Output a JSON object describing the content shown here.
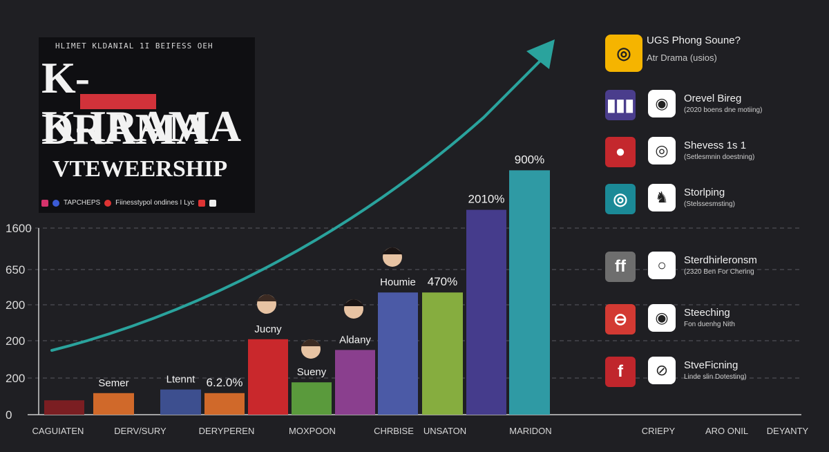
{
  "title_panel": {
    "top_line": "HLIMET KLDANIAL 1I BEIFESS OEH",
    "line1": "K-DRAMA",
    "line2": "K-IRAMA",
    "line3": "VTEWEERSHIP",
    "footer_a": "TAPCHEPS",
    "footer_b": "Fiinesstypol ondines I Lyc"
  },
  "platform_header": {
    "name": "UGS Phong Soune?",
    "sub": "Atr Drama (usios)"
  },
  "platforms": [
    {
      "name": "Orevel Bireg",
      "sub": "(2020 boens dne motiing)",
      "icon": "bars-icon",
      "icon_glyph": "▮▮▮",
      "color": "#4a3d8c",
      "icon2": "target-icon",
      "icon2_glyph": "◉"
    },
    {
      "name": "Shevess 1s 1",
      "sub": "(Setlesmnin doestning)",
      "icon": "chat-bubble-icon",
      "icon_glyph": "●",
      "color": "#c4282d",
      "icon2": "spiral-icon",
      "icon2_glyph": "◎"
    },
    {
      "name": "Storlping",
      "sub": "(Stelssesmsting)",
      "icon": "play-circle-icon",
      "icon_glyph": "◎",
      "color": "#1b8a97",
      "icon2": "elephant-icon",
      "icon2_glyph": "♞"
    },
    {
      "name": "Sterdhirleronsm",
      "sub": "(2320 Ben For Chering",
      "icon": "ff-logo-icon",
      "icon_glyph": "ff",
      "color": "#6e6e6e",
      "icon2": "ring-icon",
      "icon2_glyph": "○"
    },
    {
      "name": "Steeching",
      "sub": "Fon duenhg Nith",
      "icon": "minus-circle-icon",
      "icon_glyph": "⊖",
      "color": "#d33a33",
      "icon2": "eye-icon",
      "icon2_glyph": "◉"
    },
    {
      "name": "StveFicning",
      "sub": "Linde slin Dotesting)",
      "icon": "facebook-icon",
      "icon_glyph": "f",
      "color": "#c0262c",
      "icon2": "no-sign-icon",
      "icon2_glyph": "⊘"
    }
  ],
  "chart_data": {
    "type": "bar",
    "y_tick_labels": [
      "0",
      "200",
      "200",
      "200",
      "650",
      "1600"
    ],
    "x_tick_labels": [
      "CAGUIATEN",
      "DERV/SURY",
      "DERYPEREN",
      "MOXPOON",
      "CHRBISE",
      "UNSATON",
      "MARIDON",
      "CRIEPY",
      "ARO ONIL",
      "DEYANTY"
    ],
    "grid": true,
    "trend_arrow": true,
    "bars": [
      {
        "value": 0.4,
        "color": "#7b1e22",
        "label": ""
      },
      {
        "value": 0.6,
        "color": "#d0692a",
        "label": "Semer"
      },
      {
        "value": 0.7,
        "color": "#3d4f8f",
        "label": "Ltennt"
      },
      {
        "value": 0.6,
        "color": "#d0692a",
        "label": "6.2.0%"
      },
      {
        "value": 2.1,
        "color": "#c9282c",
        "label": "Jucny"
      },
      {
        "value": 0.9,
        "color": "#5a9a3c",
        "label": "Sueny"
      },
      {
        "value": 1.8,
        "color": "#8a3f8e",
        "label": "Aldany"
      },
      {
        "value": 3.4,
        "color": "#4b5aa6",
        "label": "Houmie"
      },
      {
        "value": 3.4,
        "color": "#86ad3f",
        "label": "470%"
      },
      {
        "value": 5.7,
        "color": "#453c8c",
        "label": "2010%"
      },
      {
        "value": 6.8,
        "color": "#2f9aa4",
        "label": "900%"
      }
    ]
  }
}
